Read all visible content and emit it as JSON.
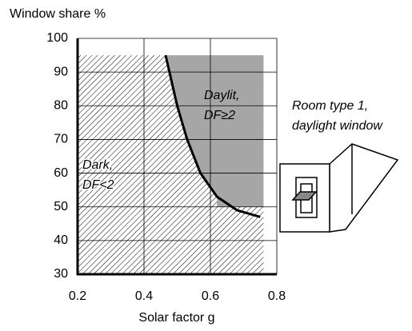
{
  "chart_data": {
    "type": "line",
    "y_label": "Window share %",
    "x_label": "Solar factor g",
    "x": [
      0.465,
      0.5,
      0.53,
      0.57,
      0.62,
      0.68,
      0.75
    ],
    "values": [
      95,
      80,
      70,
      60,
      53,
      49,
      47
    ],
    "color": "#000000",
    "xlim": [
      0.2,
      0.8
    ],
    "xticks": [
      0.2,
      0.4,
      0.6,
      0.8
    ],
    "ylim": [
      30,
      100
    ],
    "yticks": [
      30,
      40,
      50,
      60,
      70,
      80,
      90,
      100
    ],
    "grid": true,
    "regions": [
      {
        "label": [
          "Dark,",
          "DF<2"
        ],
        "fill": "hatch",
        "xlim": [
          0.2,
          0.76
        ],
        "ylim": [
          30,
          95
        ]
      },
      {
        "label": [
          "Daylit,",
          "DF≥2"
        ],
        "color": "#a6a6a6",
        "xlim": [
          0.465,
          0.76
        ],
        "ylim": [
          50,
          95
        ]
      }
    ],
    "annotation": [
      "Room type 1,",
      "daylight window"
    ]
  }
}
